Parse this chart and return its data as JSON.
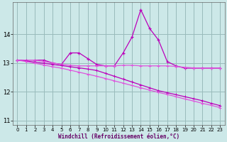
{
  "x": [
    0,
    1,
    2,
    3,
    4,
    5,
    6,
    7,
    8,
    9,
    10,
    11,
    12,
    13,
    14,
    15,
    16,
    17,
    18,
    19,
    20,
    21,
    22,
    23
  ],
  "line1": [
    13.1,
    13.1,
    13.1,
    13.1,
    13.0,
    12.95,
    13.35,
    13.35,
    13.15,
    12.95,
    12.9,
    12.9,
    13.35,
    13.9,
    14.85,
    14.2,
    13.8,
    13.05,
    12.9,
    12.82,
    12.82,
    12.82,
    12.82,
    12.82
  ],
  "line2": [
    13.1,
    13.1,
    13.1,
    13.05,
    13.0,
    12.95,
    12.92,
    12.9,
    12.9,
    12.9,
    12.9,
    12.9,
    12.92,
    12.92,
    12.9,
    12.9,
    12.9,
    12.9,
    12.88,
    12.85,
    12.83,
    12.82,
    12.82,
    12.82
  ],
  "line3": [
    13.1,
    13.07,
    13.03,
    12.99,
    12.95,
    12.91,
    12.87,
    12.83,
    12.79,
    12.74,
    12.64,
    12.54,
    12.44,
    12.34,
    12.24,
    12.14,
    12.04,
    11.97,
    11.9,
    11.83,
    11.76,
    11.69,
    11.6,
    11.52
  ],
  "line4": [
    13.1,
    13.05,
    12.99,
    12.93,
    12.87,
    12.82,
    12.75,
    12.68,
    12.61,
    12.54,
    12.46,
    12.38,
    12.3,
    12.22,
    12.14,
    12.06,
    11.98,
    11.91,
    11.83,
    11.75,
    11.68,
    11.6,
    11.53,
    11.45
  ],
  "line_color1": "#bb00bb",
  "line_color2": "#dd55dd",
  "line_color3": "#bb00bb",
  "line_color4": "#dd55dd",
  "bg_color": "#cce8e8",
  "grid_color": "#99bbbb",
  "xlabel": "Windchill (Refroidissement éolien,°C)",
  "xlim_min": -0.5,
  "xlim_max": 23.5,
  "ylim_min": 10.85,
  "ylim_max": 15.1,
  "yticks": [
    11,
    12,
    13,
    14
  ],
  "xticks": [
    0,
    1,
    2,
    3,
    4,
    5,
    6,
    7,
    8,
    9,
    10,
    11,
    12,
    13,
    14,
    15,
    16,
    17,
    18,
    19,
    20,
    21,
    22,
    23
  ]
}
